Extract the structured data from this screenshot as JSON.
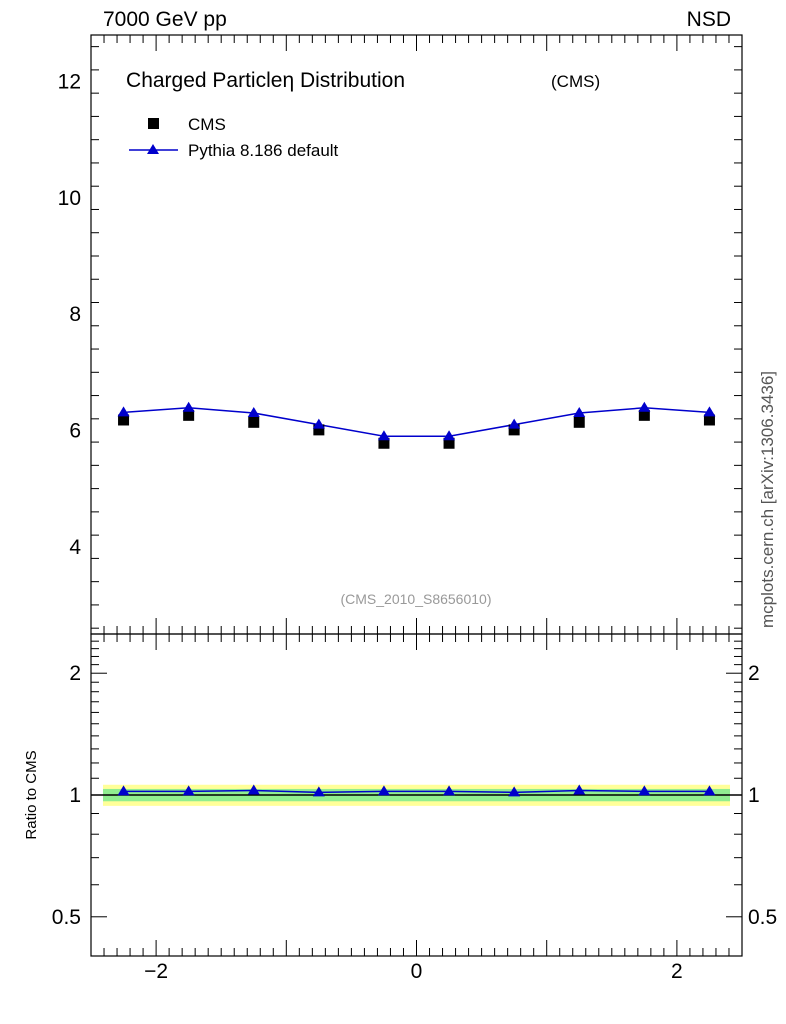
{
  "header": {
    "left": "7000 GeV pp",
    "right": "NSD",
    "watermark": "mcplots.cern.ch [arXiv:1306.3436]"
  },
  "chart_data": [
    {
      "type": "scatter",
      "title": "Charged Particleη Distribution",
      "title_suffix": "(CMS)",
      "analysis_tag": "(CMS_2010_S8656010)",
      "xlim": [
        -2.5,
        2.5
      ],
      "ylim": [
        2.5,
        12.8
      ],
      "y_ticks": [
        4,
        6,
        8,
        10,
        12
      ],
      "legend_position": "top-left",
      "x": [
        -2.25,
        -1.75,
        -1.25,
        -0.75,
        -0.25,
        0.25,
        0.75,
        1.25,
        1.75,
        2.25
      ],
      "series": [
        {
          "name": "CMS",
          "marker": "square",
          "color": "#000000",
          "values": [
            6.18,
            6.26,
            6.14,
            6.01,
            5.78,
            5.78,
            6.01,
            6.14,
            6.26,
            6.18
          ]
        },
        {
          "name": "Pythia 8.186 default",
          "marker": "triangle",
          "color": "#0000cc",
          "values": [
            6.31,
            6.39,
            6.3,
            6.1,
            5.9,
            5.9,
            6.1,
            6.3,
            6.39,
            6.31
          ]
        }
      ]
    },
    {
      "type": "line",
      "ylabel": "Ratio to CMS",
      "xlim": [
        -2.5,
        2.5
      ],
      "y_scale": "log",
      "ylim": [
        0.4,
        2.5
      ],
      "x_ticks": [
        -2,
        0,
        2
      ],
      "y_ticks": [
        0.5,
        1,
        2
      ],
      "band_inner": [
        0.965,
        1.035
      ],
      "band_outer": [
        0.94,
        1.06
      ],
      "band_colors": {
        "inner": "#90ee90",
        "outer": "#ffff99"
      },
      "x": [
        -2.25,
        -1.75,
        -1.25,
        -0.75,
        -0.25,
        0.25,
        0.75,
        1.25,
        1.75,
        2.25
      ],
      "series": [
        {
          "name": "Pythia 8.186 default",
          "color": "#0000cc",
          "values": [
            1.021,
            1.021,
            1.026,
            1.015,
            1.021,
            1.021,
            1.015,
            1.026,
            1.021,
            1.021
          ]
        }
      ]
    }
  ]
}
